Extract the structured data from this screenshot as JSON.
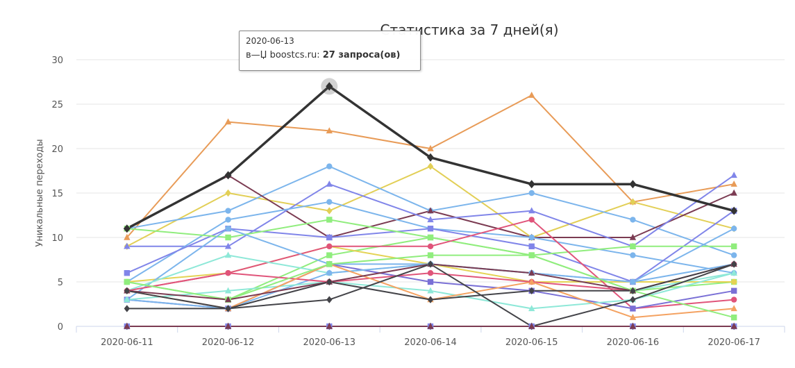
{
  "chart_data": {
    "type": "line",
    "title": "Статистика за 7 дней(я)",
    "xlabel": "",
    "ylabel": "Уникальные переходы",
    "categories": [
      "2020-06-11",
      "2020-06-12",
      "2020-06-13",
      "2020-06-14",
      "2020-06-15",
      "2020-06-16",
      "2020-06-17"
    ],
    "ylim": [
      0,
      30
    ],
    "yticks": [
      0,
      5,
      10,
      15,
      20,
      25,
      30
    ],
    "grid": true,
    "legend": "none",
    "series": [
      {
        "color": "#e89b57",
        "marker": "triangle",
        "values": [
          10,
          23,
          22,
          20,
          26,
          14,
          16
        ]
      },
      {
        "color": "#333333",
        "marker": "diamond",
        "highlight": true,
        "values": [
          11,
          17,
          27,
          19,
          16,
          16,
          13
        ]
      },
      {
        "color": "#e2cf56",
        "marker": "diamond",
        "values": [
          9,
          15,
          13,
          18,
          10,
          14,
          11
        ]
      },
      {
        "color": "#7cb5ec",
        "marker": "circle",
        "values": [
          11,
          13,
          18,
          13,
          15,
          12,
          8
        ]
      },
      {
        "color": "#7b3b52",
        "marker": "triangle",
        "values": [
          11,
          17,
          10,
          13,
          10,
          10,
          15
        ]
      },
      {
        "color": "#8085e9",
        "marker": "triangle",
        "values": [
          9,
          9,
          16,
          12,
          13,
          9,
          17
        ]
      },
      {
        "color": "#7cb5ec",
        "marker": "circle",
        "values": [
          5,
          12,
          14,
          11,
          10,
          8,
          6
        ]
      },
      {
        "color": "#8085e9",
        "marker": "square",
        "values": [
          6,
          11,
          10,
          11,
          9,
          5,
          13
        ]
      },
      {
        "color": "#90ed7d",
        "marker": "square",
        "values": [
          11,
          10,
          12,
          10,
          8,
          4,
          5
        ]
      },
      {
        "color": "#90ed7d",
        "marker": "square",
        "values": [
          5,
          3,
          8,
          10,
          8,
          9,
          9
        ]
      },
      {
        "color": "#e4d354",
        "marker": "circle",
        "values": [
          5,
          6,
          9,
          7,
          5,
          5,
          5
        ]
      },
      {
        "color": "#e0547a",
        "marker": "circle",
        "values": [
          4,
          6,
          9,
          9,
          12,
          2,
          3
        ]
      },
      {
        "color": "#7cb5ec",
        "marker": "circle",
        "values": [
          3,
          11,
          7,
          7,
          6,
          5,
          11
        ]
      },
      {
        "color": "#7a70d6",
        "marker": "square",
        "values": [
          3,
          2,
          7,
          5,
          4,
          2,
          4
        ]
      },
      {
        "color": "#8ee8d8",
        "marker": "triangle",
        "values": [
          4,
          8,
          6,
          7,
          6,
          4,
          6
        ]
      },
      {
        "color": "#7cb5ec",
        "marker": "circle",
        "values": [
          3,
          2,
          6,
          7,
          6,
          5,
          7
        ]
      },
      {
        "color": "#8ee8d8",
        "marker": "triangle",
        "values": [
          3,
          4,
          5,
          4,
          2,
          3,
          6
        ]
      },
      {
        "color": "#e0547a",
        "marker": "circle",
        "values": [
          4,
          6,
          5,
          6,
          5,
          4,
          7
        ]
      },
      {
        "color": "#f4a261",
        "marker": "triangle",
        "values": [
          4,
          2,
          7,
          3,
          5,
          1,
          2
        ]
      },
      {
        "color": "#90ed7d",
        "marker": "square",
        "values": [
          5,
          3,
          7,
          8,
          8,
          4,
          1
        ]
      },
      {
        "color": "#7b3b52",
        "marker": "triangle",
        "values": [
          4,
          3,
          5,
          7,
          6,
          4,
          7
        ]
      },
      {
        "color": "#434348",
        "marker": "diamond",
        "values": [
          2,
          2,
          3,
          7,
          0,
          3,
          7
        ]
      },
      {
        "color": "#434348",
        "marker": "diamond",
        "values": [
          4,
          2,
          5,
          3,
          4,
          4,
          7
        ]
      },
      {
        "color": "#434348",
        "marker": "diamond",
        "values": [
          0,
          0,
          0,
          0,
          0,
          0,
          0
        ]
      },
      {
        "color": "#8085e9",
        "marker": "square",
        "values": [
          0,
          0,
          0,
          0,
          0,
          0,
          0
        ]
      },
      {
        "color": "#7b3b52",
        "marker": "triangle",
        "values": [
          0,
          0,
          0,
          0,
          0,
          0,
          0
        ]
      }
    ],
    "tooltip": {
      "date": "2020-06-13",
      "label": "в—Џ boostcs.ru: ",
      "value": "27 запроса(ов)"
    }
  }
}
